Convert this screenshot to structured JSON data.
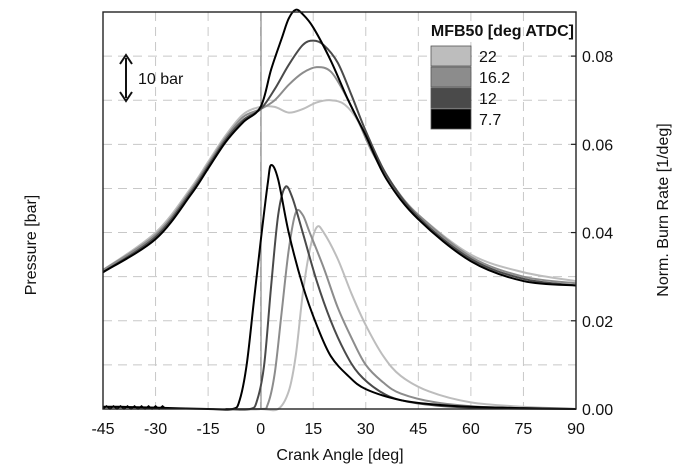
{
  "chart_data": {
    "type": "line",
    "xlabel": "Crank Angle [deg]",
    "ylabel_left": "Pressure [bar]",
    "ylabel_right": "Norm. Burn Rate [1/deg]",
    "xlim": [
      -45,
      90
    ],
    "xticks": [
      "-45",
      "-30",
      "-15",
      "0",
      "15",
      "30",
      "45",
      "60",
      "75",
      "90"
    ],
    "y_right_lim": [
      0,
      0.09
    ],
    "y_right_ticks": [
      "0.00",
      "0.02",
      "0.04",
      "0.06",
      "0.08"
    ],
    "grid": true,
    "legend_position": "top-right",
    "legend": {
      "title": "MFB50 [deg ATDC]",
      "entries": [
        {
          "label": "22",
          "color": "#bdbdbd"
        },
        {
          "label": "16.2",
          "color": "#8c8c8c"
        },
        {
          "label": "12",
          "color": "#4a4a4a"
        },
        {
          "label": "7.7",
          "color": "#000000"
        }
      ]
    },
    "annotation": {
      "label": "10 bar"
    },
    "series": [
      {
        "name": "22",
        "color": "#bdbdbd",
        "pressure": [
          [
            -45,
            0.0315
          ],
          [
            -30,
            0.04
          ],
          [
            -20,
            0.05
          ],
          [
            -15,
            0.056
          ],
          [
            -10,
            0.062
          ],
          [
            -5,
            0.0668
          ],
          [
            0,
            0.0685
          ],
          [
            4,
            0.0685
          ],
          [
            8,
            0.0672
          ],
          [
            12,
            0.068
          ],
          [
            16,
            0.0695
          ],
          [
            20,
            0.07
          ],
          [
            24,
            0.069
          ],
          [
            28,
            0.065
          ],
          [
            32,
            0.058
          ],
          [
            38,
            0.05
          ],
          [
            45,
            0.044
          ],
          [
            60,
            0.035
          ],
          [
            75,
            0.031
          ],
          [
            90,
            0.029
          ]
        ],
        "burn_rate": [
          [
            -10,
            0.0
          ],
          [
            0,
            0.0
          ],
          [
            5,
            0.0
          ],
          [
            8,
            0.004
          ],
          [
            10,
            0.012
          ],
          [
            12,
            0.026
          ],
          [
            14,
            0.036
          ],
          [
            16,
            0.0412
          ],
          [
            18,
            0.04
          ],
          [
            22,
            0.034
          ],
          [
            26,
            0.026
          ],
          [
            30,
            0.019
          ],
          [
            35,
            0.012
          ],
          [
            40,
            0.0075
          ],
          [
            48,
            0.004
          ],
          [
            60,
            0.0015
          ],
          [
            75,
            0.0005
          ],
          [
            90,
            0.0
          ]
        ]
      },
      {
        "name": "16.2",
        "color": "#8c8c8c",
        "pressure": [
          [
            -45,
            0.0315
          ],
          [
            -30,
            0.0395
          ],
          [
            -20,
            0.0495
          ],
          [
            -15,
            0.0555
          ],
          [
            -10,
            0.0615
          ],
          [
            -5,
            0.0662
          ],
          [
            0,
            0.068
          ],
          [
            4,
            0.07
          ],
          [
            8,
            0.0735
          ],
          [
            12,
            0.0762
          ],
          [
            16,
            0.0775
          ],
          [
            20,
            0.0765
          ],
          [
            24,
            0.0715
          ],
          [
            28,
            0.065
          ],
          [
            32,
            0.058
          ],
          [
            38,
            0.0505
          ],
          [
            45,
            0.044
          ],
          [
            60,
            0.0345
          ],
          [
            75,
            0.03
          ],
          [
            90,
            0.0285
          ]
        ],
        "burn_rate": [
          [
            -10,
            0.0
          ],
          [
            0,
            0.0
          ],
          [
            2,
            0.001
          ],
          [
            4,
            0.008
          ],
          [
            6,
            0.022
          ],
          [
            8,
            0.036
          ],
          [
            10,
            0.0445
          ],
          [
            12,
            0.044
          ],
          [
            14,
            0.04
          ],
          [
            18,
            0.032
          ],
          [
            22,
            0.023
          ],
          [
            26,
            0.016
          ],
          [
            30,
            0.01
          ],
          [
            35,
            0.006
          ],
          [
            40,
            0.0035
          ],
          [
            50,
            0.0015
          ],
          [
            65,
            0.0004
          ],
          [
            90,
            0.0
          ]
        ]
      },
      {
        "name": "12",
        "color": "#4a4a4a",
        "pressure": [
          [
            -45,
            0.031
          ],
          [
            -30,
            0.039
          ],
          [
            -20,
            0.049
          ],
          [
            -15,
            0.055
          ],
          [
            -10,
            0.061
          ],
          [
            -5,
            0.0655
          ],
          [
            0,
            0.068
          ],
          [
            4,
            0.0725
          ],
          [
            8,
            0.078
          ],
          [
            12,
            0.0825
          ],
          [
            15,
            0.0835
          ],
          [
            18,
            0.0825
          ],
          [
            22,
            0.0785
          ],
          [
            26,
            0.071
          ],
          [
            30,
            0.063
          ],
          [
            36,
            0.053
          ],
          [
            45,
            0.0435
          ],
          [
            60,
            0.034
          ],
          [
            75,
            0.0295
          ],
          [
            90,
            0.028
          ]
        ],
        "burn_rate": [
          [
            -10,
            0.0
          ],
          [
            -3,
            0.0
          ],
          [
            -1,
            0.002
          ],
          [
            1,
            0.01
          ],
          [
            3,
            0.028
          ],
          [
            5,
            0.044
          ],
          [
            7,
            0.0503
          ],
          [
            9,
            0.048
          ],
          [
            12,
            0.04
          ],
          [
            16,
            0.029
          ],
          [
            20,
            0.02
          ],
          [
            24,
            0.013
          ],
          [
            28,
            0.008
          ],
          [
            34,
            0.004
          ],
          [
            40,
            0.002
          ],
          [
            50,
            0.0008
          ],
          [
            65,
            0.0002
          ],
          [
            90,
            0.0
          ]
        ]
      },
      {
        "name": "7.7",
        "color": "#000000",
        "pressure": [
          [
            -45,
            0.031
          ],
          [
            -30,
            0.0385
          ],
          [
            -20,
            0.0485
          ],
          [
            -15,
            0.0545
          ],
          [
            -10,
            0.0605
          ],
          [
            -5,
            0.065
          ],
          [
            0,
            0.0685
          ],
          [
            3,
            0.077
          ],
          [
            6,
            0.084
          ],
          [
            8,
            0.0885
          ],
          [
            10,
            0.0905
          ],
          [
            12,
            0.0895
          ],
          [
            15,
            0.0865
          ],
          [
            20,
            0.079
          ],
          [
            25,
            0.07
          ],
          [
            30,
            0.062
          ],
          [
            36,
            0.052
          ],
          [
            45,
            0.043
          ],
          [
            60,
            0.0335
          ],
          [
            75,
            0.029
          ],
          [
            90,
            0.028
          ]
        ],
        "burn_rate": [
          [
            -45,
            0.0005
          ],
          [
            -40,
            0.0005
          ],
          [
            -30,
            0.0003
          ],
          [
            -15,
            0.0
          ],
          [
            -8,
            0.0
          ],
          [
            -6,
            0.002
          ],
          [
            -4,
            0.01
          ],
          [
            -2,
            0.024
          ],
          [
            0,
            0.038
          ],
          [
            2,
            0.051
          ],
          [
            3,
            0.0553
          ],
          [
            5,
            0.052
          ],
          [
            8,
            0.04
          ],
          [
            12,
            0.028
          ],
          [
            16,
            0.019
          ],
          [
            20,
            0.012
          ],
          [
            25,
            0.0075
          ],
          [
            30,
            0.0045
          ],
          [
            40,
            0.002
          ],
          [
            50,
            0.001
          ],
          [
            60,
            0.0005
          ],
          [
            75,
            0.0002
          ],
          [
            90,
            0.0
          ]
        ]
      }
    ]
  }
}
